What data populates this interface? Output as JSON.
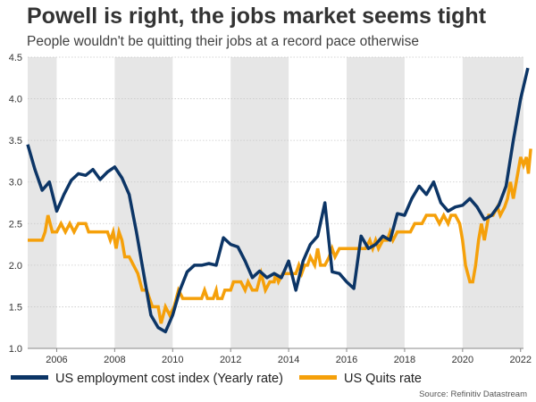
{
  "chart_data": {
    "type": "line",
    "title": "Powell is right, the jobs market seems tight",
    "subtitle": "People wouldn't be quitting their jobs at a record pace otherwise",
    "source": "Source: Refinitiv Datastream",
    "xlabel": "",
    "ylabel": "",
    "xlim": [
      2005.0,
      2022.1
    ],
    "ylim": [
      1.0,
      4.5
    ],
    "yticks": [
      1.0,
      1.5,
      2.0,
      2.5,
      3.0,
      3.5,
      4.0,
      4.5
    ],
    "ytick_labels": [
      "1.0",
      "1.5",
      "2.0",
      "2.5",
      "3.0",
      "3.5",
      "4.0",
      "4.5"
    ],
    "xticks": [
      2006,
      2008,
      2010,
      2012,
      2014,
      2016,
      2018,
      2020,
      2022
    ],
    "xtick_labels": [
      "2006",
      "2008",
      "2010",
      "2012",
      "2014",
      "2016",
      "2018",
      "2020",
      "2022"
    ],
    "shaded_bands": [
      [
        2005.0,
        2006.0
      ],
      [
        2008.0,
        2010.0
      ],
      [
        2012.0,
        2014.0
      ],
      [
        2016.0,
        2018.0
      ],
      [
        2020.0,
        2022.1
      ]
    ],
    "gridlines": "horizontal",
    "colors": {
      "eci": "#0c3566",
      "quits": "#f5a00a",
      "band": "#e6e6e6",
      "grid": "#c8c8c8"
    },
    "series": [
      {
        "name": "US employment cost index (Yearly rate)",
        "color": "#0c3566",
        "points": [
          [
            2005.0,
            3.45
          ],
          [
            2005.25,
            3.15
          ],
          [
            2005.5,
            2.9
          ],
          [
            2005.75,
            3.0
          ],
          [
            2006.0,
            2.65
          ],
          [
            2006.25,
            2.85
          ],
          [
            2006.5,
            3.02
          ],
          [
            2006.75,
            3.1
          ],
          [
            2007.0,
            3.08
          ],
          [
            2007.25,
            3.15
          ],
          [
            2007.5,
            3.03
          ],
          [
            2007.75,
            3.12
          ],
          [
            2008.0,
            3.18
          ],
          [
            2008.25,
            3.05
          ],
          [
            2008.5,
            2.85
          ],
          [
            2008.75,
            2.4
          ],
          [
            2009.0,
            1.9
          ],
          [
            2009.25,
            1.4
          ],
          [
            2009.5,
            1.25
          ],
          [
            2009.75,
            1.2
          ],
          [
            2010.0,
            1.4
          ],
          [
            2010.25,
            1.7
          ],
          [
            2010.5,
            1.92
          ],
          [
            2010.75,
            2.0
          ],
          [
            2011.0,
            2.0
          ],
          [
            2011.25,
            2.02
          ],
          [
            2011.5,
            2.0
          ],
          [
            2011.75,
            2.33
          ],
          [
            2012.0,
            2.25
          ],
          [
            2012.25,
            2.22
          ],
          [
            2012.5,
            2.05
          ],
          [
            2012.75,
            1.85
          ],
          [
            2013.0,
            1.93
          ],
          [
            2013.25,
            1.85
          ],
          [
            2013.5,
            1.9
          ],
          [
            2013.75,
            1.85
          ],
          [
            2014.0,
            2.05
          ],
          [
            2014.25,
            1.7
          ],
          [
            2014.5,
            2.05
          ],
          [
            2014.75,
            2.25
          ],
          [
            2015.0,
            2.35
          ],
          [
            2015.25,
            2.75
          ],
          [
            2015.5,
            1.92
          ],
          [
            2015.75,
            1.9
          ],
          [
            2016.0,
            1.8
          ],
          [
            2016.25,
            1.72
          ],
          [
            2016.5,
            2.35
          ],
          [
            2016.75,
            2.2
          ],
          [
            2017.0,
            2.25
          ],
          [
            2017.25,
            2.35
          ],
          [
            2017.5,
            2.3
          ],
          [
            2017.75,
            2.62
          ],
          [
            2018.0,
            2.6
          ],
          [
            2018.25,
            2.8
          ],
          [
            2018.5,
            2.95
          ],
          [
            2018.75,
            2.85
          ],
          [
            2019.0,
            3.0
          ],
          [
            2019.25,
            2.75
          ],
          [
            2019.5,
            2.65
          ],
          [
            2019.75,
            2.7
          ],
          [
            2020.0,
            2.72
          ],
          [
            2020.25,
            2.8
          ],
          [
            2020.5,
            2.7
          ],
          [
            2020.75,
            2.55
          ],
          [
            2021.0,
            2.6
          ],
          [
            2021.25,
            2.72
          ],
          [
            2021.5,
            2.95
          ],
          [
            2021.75,
            3.5
          ],
          [
            2022.0,
            4.0
          ],
          [
            2022.25,
            4.37
          ]
        ]
      },
      {
        "name": "US Quits rate",
        "color": "#f5a00a",
        "points": [
          [
            2005.0,
            2.3
          ],
          [
            2005.5,
            2.3
          ],
          [
            2005.6,
            2.4
          ],
          [
            2005.7,
            2.6
          ],
          [
            2005.85,
            2.4
          ],
          [
            2006.0,
            2.4
          ],
          [
            2006.15,
            2.5
          ],
          [
            2006.3,
            2.4
          ],
          [
            2006.45,
            2.5
          ],
          [
            2006.6,
            2.4
          ],
          [
            2006.75,
            2.5
          ],
          [
            2006.9,
            2.5
          ],
          [
            2007.0,
            2.5
          ],
          [
            2007.1,
            2.4
          ],
          [
            2007.3,
            2.4
          ],
          [
            2007.5,
            2.4
          ],
          [
            2007.75,
            2.4
          ],
          [
            2007.85,
            2.3
          ],
          [
            2007.95,
            2.4
          ],
          [
            2008.05,
            2.2
          ],
          [
            2008.15,
            2.4
          ],
          [
            2008.25,
            2.3
          ],
          [
            2008.35,
            2.1
          ],
          [
            2008.5,
            2.1
          ],
          [
            2008.65,
            2.0
          ],
          [
            2008.8,
            1.9
          ],
          [
            2008.95,
            1.7
          ],
          [
            2009.1,
            1.7
          ],
          [
            2009.3,
            1.5
          ],
          [
            2009.5,
            1.5
          ],
          [
            2009.6,
            1.3
          ],
          [
            2009.75,
            1.5
          ],
          [
            2009.9,
            1.4
          ],
          [
            2010.05,
            1.5
          ],
          [
            2010.2,
            1.7
          ],
          [
            2010.35,
            1.6
          ],
          [
            2010.5,
            1.6
          ],
          [
            2010.7,
            1.6
          ],
          [
            2010.85,
            1.6
          ],
          [
            2011.0,
            1.6
          ],
          [
            2011.1,
            1.7
          ],
          [
            2011.2,
            1.6
          ],
          [
            2011.4,
            1.6
          ],
          [
            2011.5,
            1.7
          ],
          [
            2011.55,
            1.6
          ],
          [
            2011.7,
            1.6
          ],
          [
            2011.8,
            1.7
          ],
          [
            2012.0,
            1.7
          ],
          [
            2012.1,
            1.8
          ],
          [
            2012.35,
            1.8
          ],
          [
            2012.5,
            1.7
          ],
          [
            2012.6,
            1.8
          ],
          [
            2012.75,
            1.7
          ],
          [
            2012.9,
            1.7
          ],
          [
            2013.05,
            1.9
          ],
          [
            2013.2,
            1.7
          ],
          [
            2013.35,
            1.8
          ],
          [
            2013.5,
            1.8
          ],
          [
            2013.55,
            1.9
          ],
          [
            2013.65,
            1.8
          ],
          [
            2013.8,
            1.9
          ],
          [
            2013.95,
            1.9
          ],
          [
            2014.1,
            1.9
          ],
          [
            2014.25,
            1.9
          ],
          [
            2014.35,
            2.0
          ],
          [
            2014.45,
            1.9
          ],
          [
            2014.55,
            2.0
          ],
          [
            2014.65,
            2.0
          ],
          [
            2014.75,
            2.1
          ],
          [
            2014.9,
            2.0
          ],
          [
            2015.0,
            2.2
          ],
          [
            2015.1,
            2.0
          ],
          [
            2015.25,
            2.0
          ],
          [
            2015.4,
            2.1
          ],
          [
            2015.5,
            2.2
          ],
          [
            2015.6,
            2.1
          ],
          [
            2015.75,
            2.2
          ],
          [
            2015.9,
            2.2
          ],
          [
            2016.05,
            2.2
          ],
          [
            2016.2,
            2.2
          ],
          [
            2016.35,
            2.2
          ],
          [
            2016.5,
            2.2
          ],
          [
            2016.65,
            2.2
          ],
          [
            2016.8,
            2.3
          ],
          [
            2016.9,
            2.2
          ],
          [
            2017.0,
            2.3
          ],
          [
            2017.1,
            2.2
          ],
          [
            2017.25,
            2.3
          ],
          [
            2017.4,
            2.3
          ],
          [
            2017.5,
            2.4
          ],
          [
            2017.6,
            2.3
          ],
          [
            2017.75,
            2.4
          ],
          [
            2017.9,
            2.4
          ],
          [
            2018.05,
            2.4
          ],
          [
            2018.2,
            2.4
          ],
          [
            2018.35,
            2.5
          ],
          [
            2018.5,
            2.5
          ],
          [
            2018.6,
            2.5
          ],
          [
            2018.75,
            2.6
          ],
          [
            2018.9,
            2.6
          ],
          [
            2019.05,
            2.6
          ],
          [
            2019.2,
            2.5
          ],
          [
            2019.35,
            2.6
          ],
          [
            2019.5,
            2.5
          ],
          [
            2019.6,
            2.6
          ],
          [
            2019.75,
            2.6
          ],
          [
            2019.9,
            2.5
          ],
          [
            2020.0,
            2.3
          ],
          [
            2020.1,
            2.0
          ],
          [
            2020.25,
            1.8
          ],
          [
            2020.35,
            1.8
          ],
          [
            2020.45,
            2.0
          ],
          [
            2020.55,
            2.3
          ],
          [
            2020.65,
            2.5
          ],
          [
            2020.75,
            2.3
          ],
          [
            2020.9,
            2.6
          ],
          [
            2021.05,
            2.6
          ],
          [
            2021.2,
            2.7
          ],
          [
            2021.3,
            2.6
          ],
          [
            2021.45,
            2.7
          ],
          [
            2021.55,
            2.8
          ],
          [
            2021.65,
            3.0
          ],
          [
            2021.75,
            2.8
          ],
          [
            2021.85,
            3.0
          ],
          [
            2022.0,
            3.3
          ],
          [
            2022.1,
            3.2
          ],
          [
            2022.2,
            3.3
          ],
          [
            2022.27,
            3.1
          ],
          [
            2022.35,
            3.4
          ]
        ]
      }
    ]
  },
  "legend": {
    "eci_label": "US employment cost index (Yearly rate)",
    "quits_label": "US Quits rate"
  }
}
